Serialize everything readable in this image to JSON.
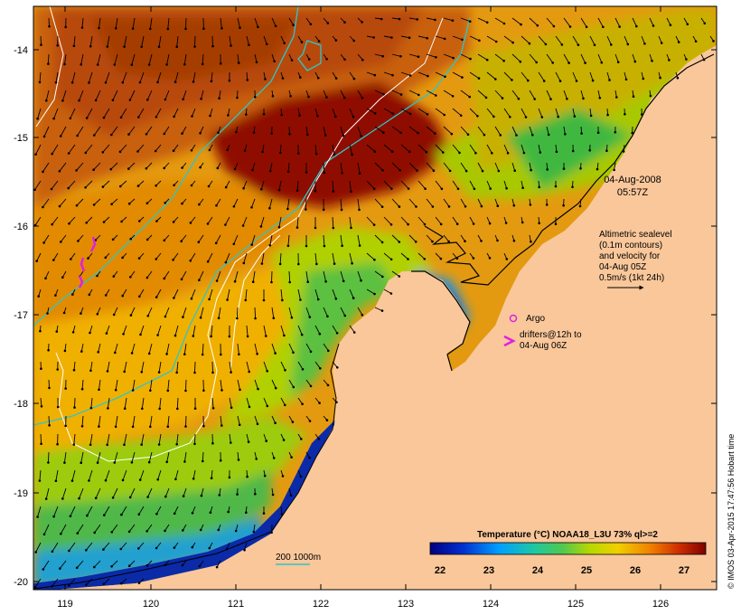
{
  "map": {
    "date": "04-Aug-2008",
    "time": "05:57Z",
    "x_ticks": [
      "119",
      "120",
      "121",
      "122",
      "123",
      "124",
      "125",
      "126"
    ],
    "y_ticks": [
      "-14",
      "-15",
      "-16",
      "-17",
      "-18",
      "-19",
      "-20"
    ],
    "altimetry_legend": [
      "Altimetric sealevel",
      "(0.1m contours)",
      "and velocity for",
      "04-Aug 05Z",
      "0.5m/s (1kt 24h)"
    ],
    "argo_label": "Argo",
    "drifters_label_1": "drifters@12h to",
    "drifters_label_2": "04-Aug 06Z",
    "depth_legend": "200  1000m",
    "colorbar_title": "Temperature (°C) NOAA18_L3U 73% ql>=2",
    "colorbar_ticks": [
      "22",
      "23",
      "24",
      "25",
      "26",
      "27"
    ],
    "credit": "© IMOS 03-Apr-2015 17:47:56 Hobart time",
    "colors": {
      "land": "#f9c79a",
      "sea_hot": "#8f0b00",
      "sea_warm": "#d25d00",
      "sea_mid": "#e8a400",
      "sea_cool": "#c8d400",
      "sea_green": "#3fba3f",
      "sea_blue": "#1aa0e8",
      "sea_deep": "#0a24a0",
      "contour_cyan": "#2ec6c6",
      "argo_magenta": "#e020e0"
    }
  }
}
